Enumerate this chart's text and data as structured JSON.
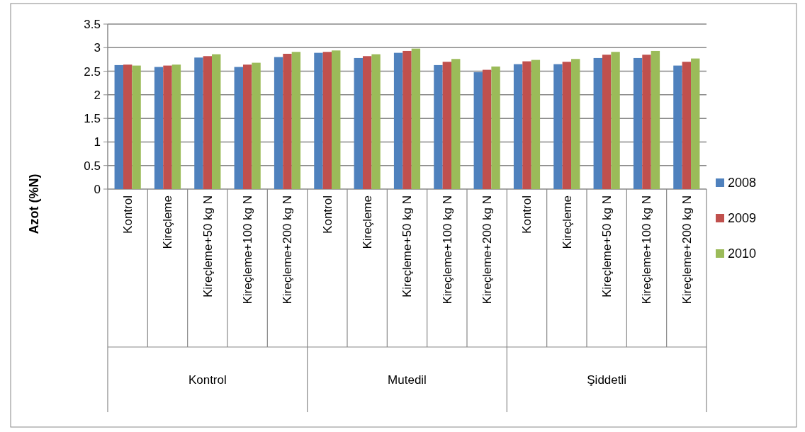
{
  "chart_data": {
    "type": "bar",
    "ylabel": "Azot  (%N)",
    "categories": [
      "Kontrol",
      "Kireçleme",
      "Kireçleme+50 kg N",
      "Kireçleme+100 kg N",
      "Kireçleme+200 kg N",
      "Kontrol",
      "Kireçleme",
      "Kireçleme+50 kg N",
      "Kireçleme+100 kg N",
      "Kireçleme+200 kg N",
      "Kontrol",
      "Kireçleme",
      "Kireçleme+50 kg N",
      "Kireçleme+100 kg N",
      "Kireçleme+200 kg N"
    ],
    "annotations": [
      "Kontrol",
      "Mutedil",
      "Şiddetli"
    ],
    "series": [
      {
        "name": "2008",
        "color": "#4f81bd",
        "values": [
          2.63,
          2.59,
          2.79,
          2.59,
          2.8,
          2.89,
          2.78,
          2.89,
          2.63,
          2.48,
          2.65,
          2.65,
          2.78,
          2.78,
          2.62
        ]
      },
      {
        "name": "2009",
        "color": "#c0504d",
        "values": [
          2.64,
          2.62,
          2.82,
          2.64,
          2.87,
          2.91,
          2.82,
          2.93,
          2.7,
          2.53,
          2.71,
          2.7,
          2.85,
          2.85,
          2.7
        ]
      },
      {
        "name": "2010",
        "color": "#9bbb59",
        "values": [
          2.62,
          2.64,
          2.86,
          2.68,
          2.91,
          2.94,
          2.86,
          2.98,
          2.76,
          2.6,
          2.74,
          2.76,
          2.91,
          2.93,
          2.77
        ]
      }
    ],
    "ylim": [
      0,
      3.5
    ],
    "yticks": [
      0,
      0.5,
      1,
      1.5,
      2,
      2.5,
      3,
      3.5
    ],
    "grid": "y",
    "legend": "right"
  }
}
